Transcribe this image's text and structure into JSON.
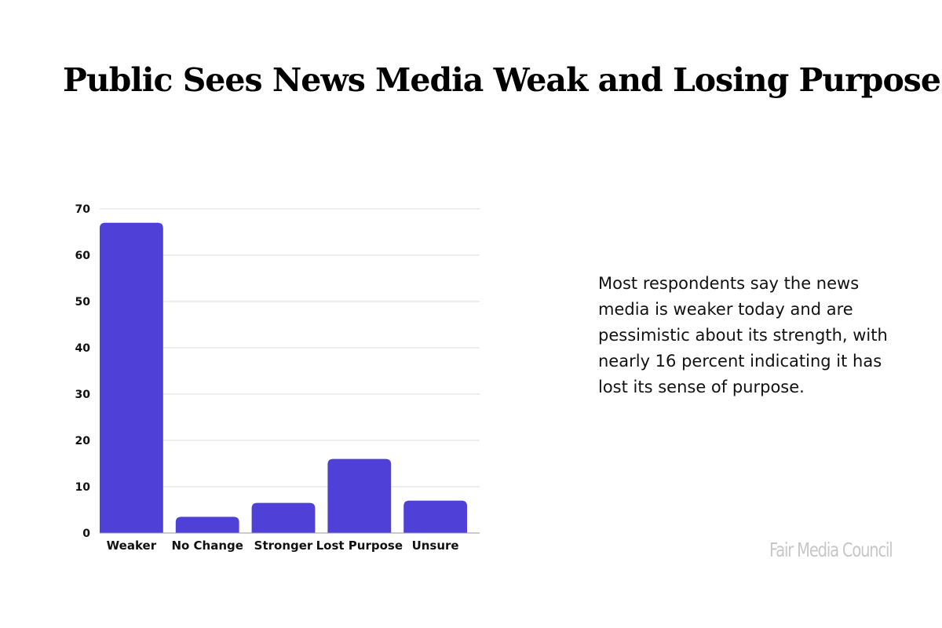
{
  "title": "Public Sees News Media Weak and Losing Purpose",
  "description": "Most respondents say the news media is weaker today and are pessimistic about its strength, with nearly 16 percent indicating it has lost its sense of purpose.",
  "brand": "Fair Media Council",
  "colors": {
    "bar": "#4f41d8",
    "grid": "#dddddd",
    "axis": "#999999"
  },
  "chart_data": {
    "type": "bar",
    "categories": [
      "Weaker",
      "No Change",
      "Stronger",
      "Lost Purpose",
      "Unsure"
    ],
    "values": [
      67,
      3.5,
      6.5,
      16,
      7
    ],
    "ylim": [
      0,
      70
    ],
    "yticks": [
      0,
      10,
      20,
      30,
      40,
      50,
      60,
      70
    ],
    "grid": true,
    "legend": "none"
  }
}
